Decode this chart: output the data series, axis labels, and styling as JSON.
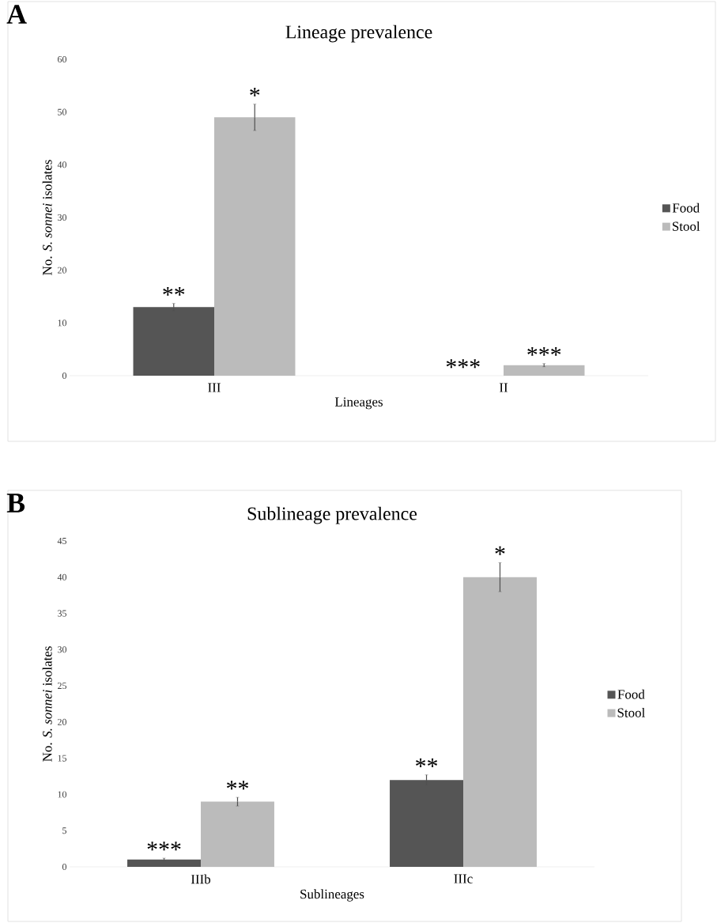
{
  "chart_data": [
    {
      "type": "bar",
      "title": "Lineage prevalence",
      "xlabel": "Lineages",
      "ylabel": "No. *S. sonnei* isolates",
      "categories": [
        "III",
        "II"
      ],
      "series": [
        {
          "name": "Food",
          "color": "#555555",
          "values": [
            13,
            0
          ],
          "errors": [
            0.7,
            null
          ]
        },
        {
          "name": "Stool",
          "color": "#bbbbbb",
          "values": [
            49,
            2
          ],
          "errors": [
            2.5,
            0.3
          ]
        }
      ],
      "ylim": [
        0,
        60
      ],
      "yticks": [
        0,
        10,
        20,
        30,
        40,
        50,
        60
      ],
      "legend": "right",
      "grid": false,
      "annotations": [
        "A",
        {
          "text": "**",
          "x": "III",
          "y": 13
        },
        {
          "text": "*",
          "x": "III",
          "y": 49
        },
        {
          "text": "***",
          "x": "II",
          "y": 0
        },
        {
          "text": "***",
          "x": "II",
          "y": 2
        }
      ]
    },
    {
      "type": "bar",
      "title": "Sublineage prevalence",
      "xlabel": "Sublineages",
      "ylabel": "No. *S. sonnei* isolates",
      "categories": [
        "IIIb",
        "IIIc"
      ],
      "series": [
        {
          "name": "Food",
          "color": "#555555",
          "values": [
            1,
            12
          ],
          "errors": [
            0.2,
            0.7
          ]
        },
        {
          "name": "Stool",
          "color": "#bbbbbb",
          "values": [
            9,
            40
          ],
          "errors": [
            0.6,
            2
          ]
        }
      ],
      "ylim": [
        0,
        45
      ],
      "yticks": [
        0,
        5,
        10,
        15,
        20,
        25,
        30,
        35,
        40,
        45
      ],
      "legend": "right",
      "grid": false,
      "annotations": [
        "B",
        {
          "text": "***",
          "x": "IIIb",
          "y": 1
        },
        {
          "text": "**",
          "x": "IIIb",
          "y": 9
        },
        {
          "text": "**",
          "x": "IIIc",
          "y": 12
        },
        {
          "text": "*",
          "x": "IIIc",
          "y": 40
        }
      ]
    }
  ]
}
